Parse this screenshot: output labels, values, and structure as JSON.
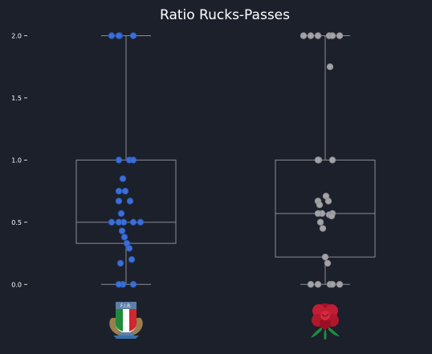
{
  "chart_data": {
    "type": "box",
    "title": "Ratio Rucks-Passes",
    "ylim": [
      -0.05,
      2.1
    ],
    "yticks": [
      {
        "value": 0.0,
        "label": "0.0"
      },
      {
        "value": 0.5,
        "label": "0.5"
      },
      {
        "value": 1.0,
        "label": "1.0"
      },
      {
        "value": 1.5,
        "label": "1.5"
      },
      {
        "value": 2.0,
        "label": "2.0"
      }
    ],
    "grid": false,
    "box_style": {
      "stroke": "#8a8d94"
    },
    "groups": [
      {
        "logo": "italy-fir-rugby-logo",
        "point_color": "#3a6fd8",
        "point_edge": "#2a55b0",
        "box": {
          "min": 0.0,
          "q1": 0.33,
          "median": 0.5,
          "q3": 1.0,
          "max": 2.0
        },
        "points": [
          2.0,
          2.0,
          2.0,
          2.0,
          1.0,
          1.0,
          1.0,
          0.85,
          0.75,
          0.75,
          0.67,
          0.67,
          0.57,
          0.5,
          0.5,
          0.5,
          0.5,
          0.5,
          0.43,
          0.38,
          0.33,
          0.29,
          0.2,
          0.17,
          0.0,
          0.0,
          0.0
        ]
      },
      {
        "logo": "england-red-rose-logo",
        "point_color": "#a3a3a7",
        "point_edge": "#8a8a8e",
        "box": {
          "min": 0.0,
          "q1": 0.22,
          "median": 0.57,
          "q3": 1.0,
          "max": 2.0
        },
        "points": [
          2.0,
          2.0,
          2.0,
          2.0,
          2.0,
          2.0,
          1.75,
          1.0,
          1.0,
          1.0,
          0.71,
          0.67,
          0.67,
          0.64,
          0.57,
          0.57,
          0.57,
          0.56,
          0.55,
          0.5,
          0.45,
          0.22,
          0.17,
          0.0,
          0.0,
          0.0,
          0.0,
          0.0
        ]
      }
    ]
  }
}
